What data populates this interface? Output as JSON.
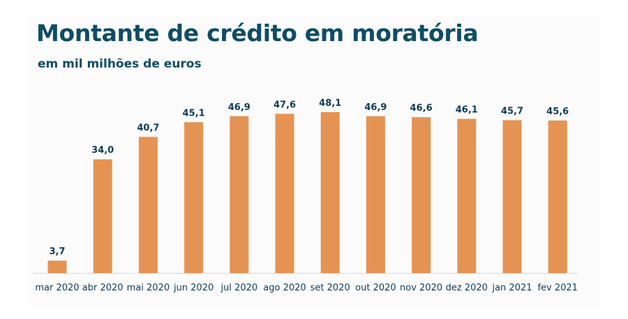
{
  "chart_data": {
    "type": "bar",
    "title": "Montante de crédito em moratória",
    "subtitle": "em mil milhões de euros",
    "categories": [
      "mar 2020",
      "abr 2020",
      "mai 2020",
      "jun 2020",
      "jul 2020",
      "ago 2020",
      "set 2020",
      "out 2020",
      "nov 2020",
      "dez 2020",
      "jan 2021",
      "fev 2021"
    ],
    "values": [
      3.7,
      34.0,
      40.7,
      45.1,
      46.9,
      47.6,
      48.1,
      46.9,
      46.6,
      46.1,
      45.7,
      45.6
    ],
    "value_labels": [
      "3,7",
      "34,0",
      "40,7",
      "45,1",
      "46,9",
      "47,6",
      "48,1",
      "46,9",
      "46,6",
      "46,1",
      "45,7",
      "45,6"
    ],
    "xlabel": "",
    "ylabel": "",
    "ylim": [
      0,
      48.1
    ],
    "grid": false,
    "bar_color": "#e59353",
    "text_color": "#0f4d64"
  }
}
